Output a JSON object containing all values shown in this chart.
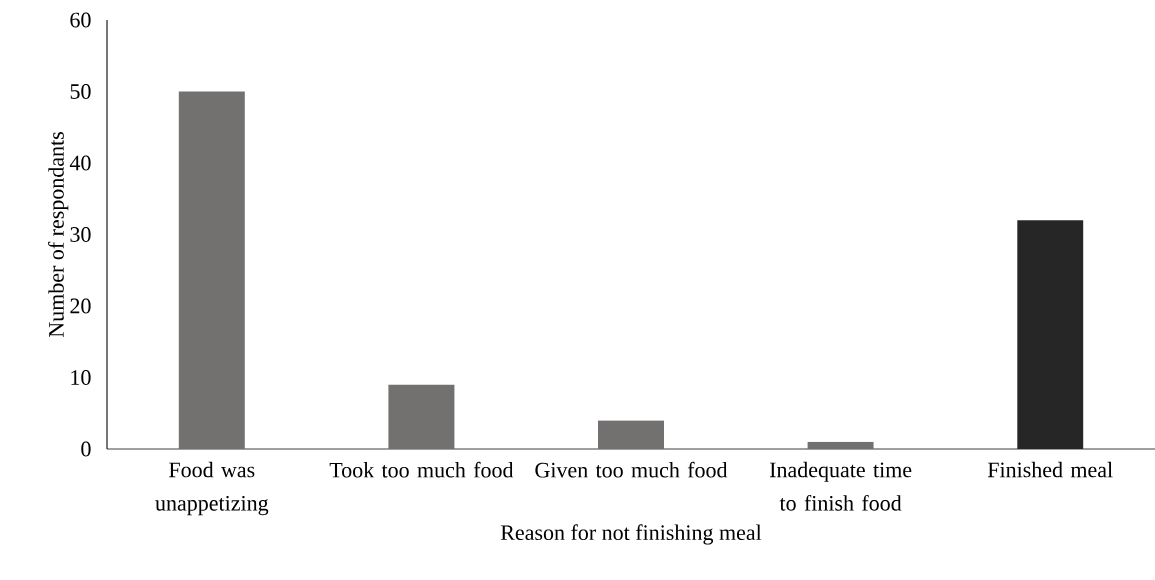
{
  "chart_data": {
    "type": "bar",
    "xlabel": "Reason for not finishing meal",
    "ylabel": "Number of respondants",
    "categories": [
      "Food was unappetizing",
      "Took too much food",
      "Given too much food",
      "Inadequate time to finish food",
      "Finished meal"
    ],
    "values": [
      50,
      9,
      4,
      1,
      32
    ],
    "colors": [
      "#737070",
      "#737070",
      "#737070",
      "#737070",
      "#262626"
    ],
    "ylim": [
      0,
      60
    ],
    "yticks": [
      0,
      10,
      20,
      30,
      40,
      50,
      60
    ],
    "grid": false
  }
}
